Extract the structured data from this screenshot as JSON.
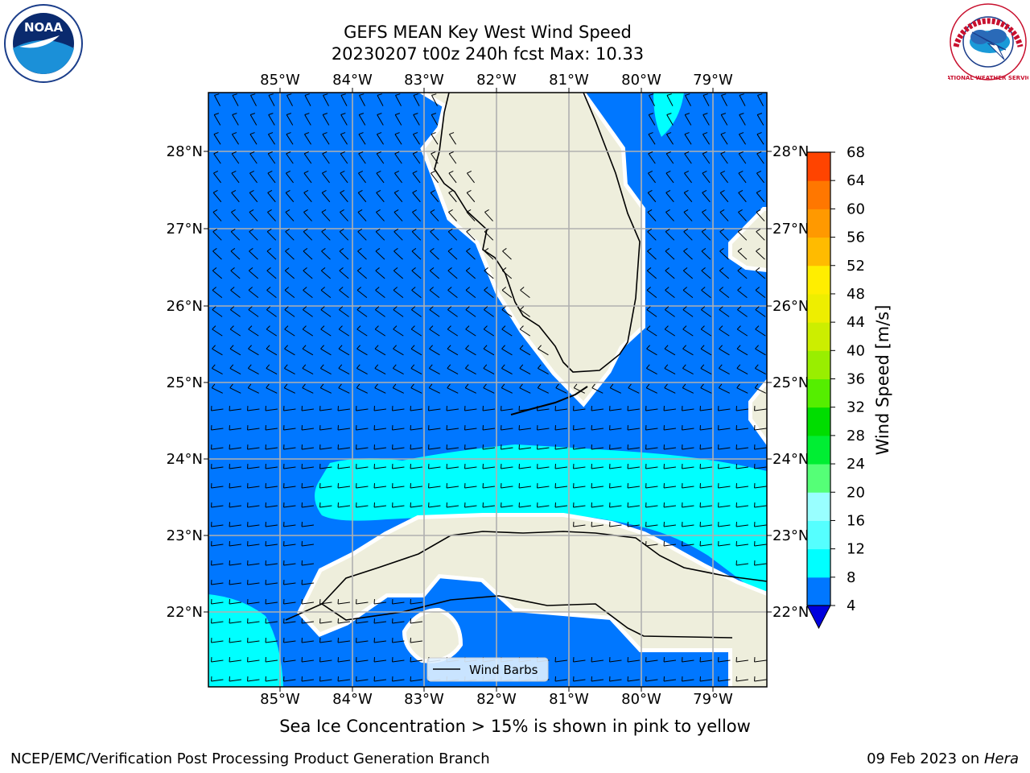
{
  "title": {
    "line1": "GEFS MEAN Key West Wind Speed",
    "line2": "20230207 t00z 240h fcst   Max: 10.33"
  },
  "map": {
    "lon_labels": [
      "85°W",
      "84°W",
      "83°W",
      "82°W",
      "81°W",
      "80°W",
      "79°W"
    ],
    "lat_labels": [
      "28°N",
      "27°N",
      "26°N",
      "25°N",
      "24°N",
      "23°N",
      "22°N"
    ],
    "legend_label": "Wind Barbs",
    "colors": {
      "ocean_4_8": "#0077ff",
      "ocean_8_12": "#00ffff",
      "land": "#eeeedc",
      "gridline": "#b0b0b0"
    }
  },
  "colorbar": {
    "label": "Wind Speed [m/s]",
    "ticks": [
      "4",
      "8",
      "12",
      "16",
      "20",
      "24",
      "28",
      "32",
      "36",
      "40",
      "44",
      "48",
      "52",
      "56",
      "60",
      "64",
      "68"
    ],
    "colors": [
      "#0077ff",
      "#00ffff",
      "#55ffff",
      "#99ffff",
      "#55ff77",
      "#00ee33",
      "#00dd00",
      "#55ee00",
      "#99ee00",
      "#ccee00",
      "#eeee00",
      "#ffee00",
      "#ffbb00",
      "#ff9900",
      "#ff7700",
      "#ff4400",
      "#ff1100"
    ],
    "under_color": "#0000dd"
  },
  "caption": "Sea Ice Concentration > 15% is shown in pink to yellow",
  "footer": {
    "left": "NCEP/EMC/Verification Post Processing Product Generation Branch",
    "date": "09 Feb 2023 on ",
    "host": "Hera"
  },
  "logos": {
    "noaa_text": "NOAA",
    "nws_text": "NATIONAL WEATHER SERVICE"
  }
}
